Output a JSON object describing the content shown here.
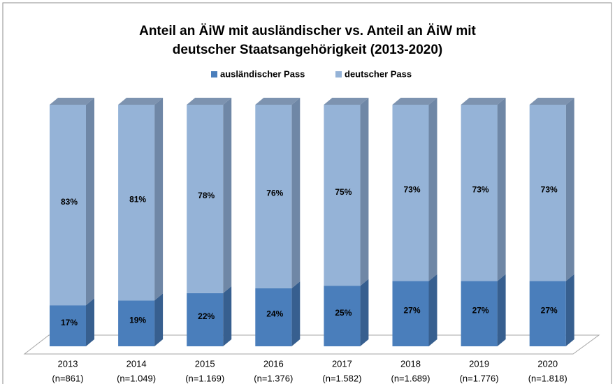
{
  "chart_data": {
    "type": "stacked_bar_3d",
    "title": [
      "Anteil an ÄiW mit ausländischer vs. Anteil an ÄiW mit",
      "deutscher Staatsangehörigkeit (2013-2020)"
    ],
    "categories": [
      "2013",
      "2014",
      "2015",
      "2016",
      "2017",
      "2018",
      "2019",
      "2020"
    ],
    "category_notes": [
      "(n=861)",
      "(n=1.049)",
      "(n=1.169)",
      "(n=1.376)",
      "(n=1.582)",
      "(n=1.689)",
      "(n=1.776)",
      "(n=1.818)"
    ],
    "series": [
      {
        "name": "ausländischer Pass",
        "color": "#4a7ebb",
        "side_color": "#375f8f",
        "top_color": "#3f6a9c",
        "values": [
          17,
          19,
          22,
          24,
          25,
          27,
          27,
          27
        ],
        "value_labels": [
          "17%",
          "19%",
          "22%",
          "24%",
          "25%",
          "27%",
          "27%",
          "27%"
        ]
      },
      {
        "name": "deutscher Pass",
        "color": "#95b3d7",
        "side_color": "#6f87a6",
        "top_color": "#7d93b0",
        "values": [
          83,
          81,
          78,
          76,
          75,
          73,
          73,
          73
        ],
        "value_labels": [
          "83%",
          "81%",
          "78%",
          "76%",
          "75%",
          "73%",
          "73%",
          "73%"
        ]
      }
    ],
    "legend": "top"
  }
}
